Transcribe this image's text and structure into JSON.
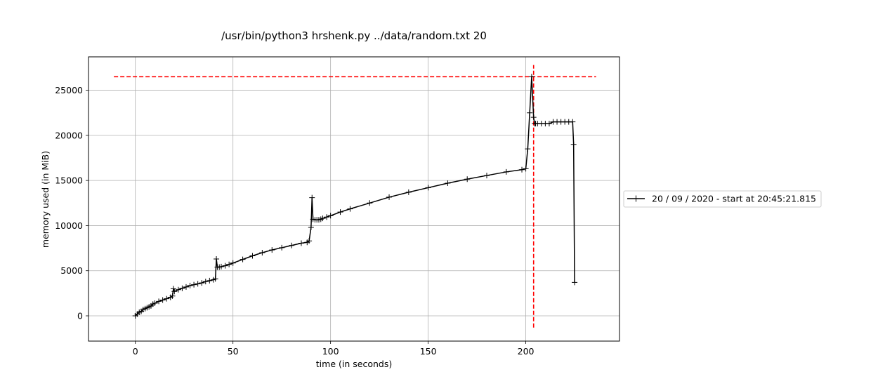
{
  "chart_data": {
    "type": "line",
    "title": "/usr/bin/python3 hrshenk.py ../data/random.txt 20",
    "xlabel": "time (in seconds)",
    "ylabel": "memory used (in MiB)",
    "xlim": [
      -24,
      248
    ],
    "ylim": [
      -2800,
      28700
    ],
    "xticks": [
      0,
      50,
      100,
      150,
      200
    ],
    "xtick_labels": [
      "0",
      "50",
      "100",
      "150",
      "200"
    ],
    "yticks": [
      0,
      5000,
      10000,
      15000,
      20000,
      25000
    ],
    "ytick_labels": [
      "0",
      "5000",
      "10000",
      "15000",
      "20000",
      "25000"
    ],
    "grid": true,
    "legend_position": "right, outside plot",
    "colors": {
      "series": "#000000",
      "peak_lines": "#ff0000",
      "grid": "#b0b0b0"
    },
    "series": [
      {
        "name": "20 / 09 / 2020 - start at 20:45:21.815",
        "marker": "+",
        "x": [
          0,
          1,
          2,
          3,
          4,
          5,
          6,
          7,
          8,
          9,
          10,
          12,
          14,
          16,
          18,
          19,
          19.5,
          20,
          22,
          24,
          26,
          28,
          30,
          32,
          34,
          36,
          38,
          40,
          41,
          41.5,
          42,
          43,
          44,
          46,
          48,
          50,
          55,
          60,
          65,
          70,
          75,
          80,
          85,
          88,
          89,
          90,
          90.5,
          91,
          92,
          93,
          94,
          95,
          96,
          98,
          100,
          105,
          110,
          120,
          130,
          140,
          150,
          160,
          170,
          180,
          190,
          198,
          200,
          201,
          202,
          203,
          204,
          204.5,
          205,
          206,
          208,
          210,
          212,
          214,
          216,
          218,
          220,
          222,
          224,
          224.5,
          225
        ],
        "y": [
          0,
          200,
          400,
          500,
          700,
          800,
          900,
          1000,
          1100,
          1300,
          1400,
          1600,
          1750,
          1900,
          2050,
          2200,
          3000,
          2700,
          2900,
          3050,
          3200,
          3350,
          3450,
          3550,
          3650,
          3800,
          3900,
          4000,
          4100,
          6300,
          5400,
          5400,
          5450,
          5550,
          5700,
          5850,
          6250,
          6650,
          7000,
          7300,
          7550,
          7800,
          8050,
          8150,
          8300,
          9800,
          13100,
          10700,
          10650,
          10650,
          10650,
          10700,
          10800,
          10950,
          11100,
          11500,
          11850,
          12500,
          13150,
          13700,
          14200,
          14700,
          15150,
          15550,
          15950,
          16200,
          16300,
          18500,
          22500,
          26500,
          22000,
          21300,
          21300,
          21300,
          21300,
          21300,
          21300,
          21500,
          21500,
          21500,
          21500,
          21500,
          21500,
          19000,
          3700
        ]
      }
    ],
    "reference_lines": [
      {
        "orientation": "horizontal",
        "y": 26500,
        "x_range": [
          -11,
          236
        ],
        "style": "dashed",
        "color": "#ff0000"
      },
      {
        "orientation": "vertical",
        "x": 204,
        "y_range": [
          -1300,
          27800
        ],
        "style": "dashed",
        "color": "#ff0000"
      }
    ]
  }
}
